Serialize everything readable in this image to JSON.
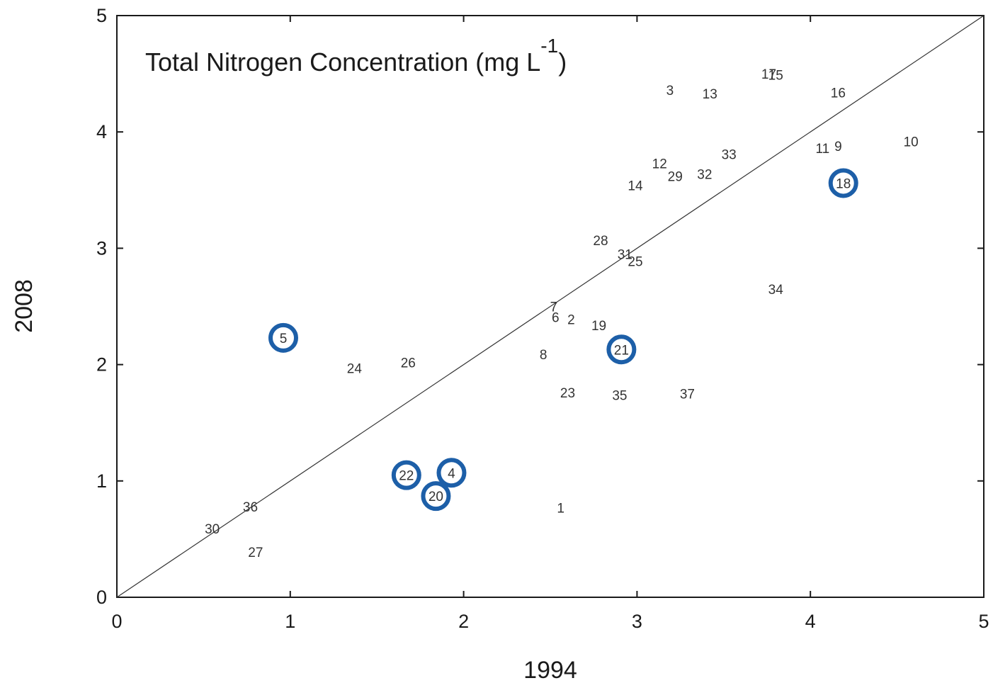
{
  "chart_data": {
    "type": "scatter",
    "title": "Total Nitrogen Concentration (mg L",
    "title_superscript": "-1",
    "title_suffix": ")",
    "xlabel": "1994",
    "ylabel": "2008",
    "xlim": [
      0,
      5
    ],
    "ylim": [
      0,
      5
    ],
    "xticks": [
      0,
      1,
      2,
      3,
      4,
      5
    ],
    "yticks": [
      0,
      1,
      2,
      3,
      4,
      5
    ],
    "reference_line": "1:1",
    "grid": false,
    "highlight_color": "#1d5fa8",
    "points": [
      {
        "label": "1",
        "x": 2.56,
        "y": 0.77
      },
      {
        "label": "2",
        "x": 2.62,
        "y": 2.39
      },
      {
        "label": "3",
        "x": 3.19,
        "y": 4.36
      },
      {
        "label": "4",
        "x": 1.93,
        "y": 1.07,
        "highlight": true
      },
      {
        "label": "5",
        "x": 0.96,
        "y": 2.23,
        "highlight": true
      },
      {
        "label": "6",
        "x": 2.53,
        "y": 2.41
      },
      {
        "label": "7",
        "x": 2.52,
        "y": 2.5
      },
      {
        "label": "8",
        "x": 2.46,
        "y": 2.09
      },
      {
        "label": "9",
        "x": 4.16,
        "y": 3.88
      },
      {
        "label": "10",
        "x": 4.58,
        "y": 3.92
      },
      {
        "label": "11",
        "x": 4.07,
        "y": 3.86
      },
      {
        "label": "12",
        "x": 3.13,
        "y": 3.73
      },
      {
        "label": "13",
        "x": 3.42,
        "y": 4.33
      },
      {
        "label": "14",
        "x": 2.99,
        "y": 3.54
      },
      {
        "label": "15",
        "x": 3.8,
        "y": 4.49
      },
      {
        "label": "16",
        "x": 4.16,
        "y": 4.34
      },
      {
        "label": "17",
        "x": 3.76,
        "y": 4.5
      },
      {
        "label": "18",
        "x": 4.19,
        "y": 3.56,
        "highlight": true
      },
      {
        "label": "19",
        "x": 2.78,
        "y": 2.34
      },
      {
        "label": "20",
        "x": 1.84,
        "y": 0.87,
        "highlight": true
      },
      {
        "label": "21",
        "x": 2.91,
        "y": 2.13,
        "highlight": true
      },
      {
        "label": "22",
        "x": 1.67,
        "y": 1.05,
        "highlight": true
      },
      {
        "label": "23",
        "x": 2.6,
        "y": 1.76
      },
      {
        "label": "24",
        "x": 1.37,
        "y": 1.97
      },
      {
        "label": "25",
        "x": 2.99,
        "y": 2.89
      },
      {
        "label": "26",
        "x": 1.68,
        "y": 2.02
      },
      {
        "label": "27",
        "x": 0.8,
        "y": 0.39
      },
      {
        "label": "28",
        "x": 2.79,
        "y": 3.07
      },
      {
        "label": "29",
        "x": 3.22,
        "y": 3.62
      },
      {
        "label": "30",
        "x": 0.55,
        "y": 0.59
      },
      {
        "label": "31",
        "x": 2.93,
        "y": 2.95
      },
      {
        "label": "32",
        "x": 3.39,
        "y": 3.64
      },
      {
        "label": "33",
        "x": 3.53,
        "y": 3.81
      },
      {
        "label": "34",
        "x": 3.8,
        "y": 2.65
      },
      {
        "label": "35",
        "x": 2.9,
        "y": 1.74
      },
      {
        "label": "36",
        "x": 0.77,
        "y": 0.78
      },
      {
        "label": "37",
        "x": 3.29,
        "y": 1.75
      }
    ]
  }
}
